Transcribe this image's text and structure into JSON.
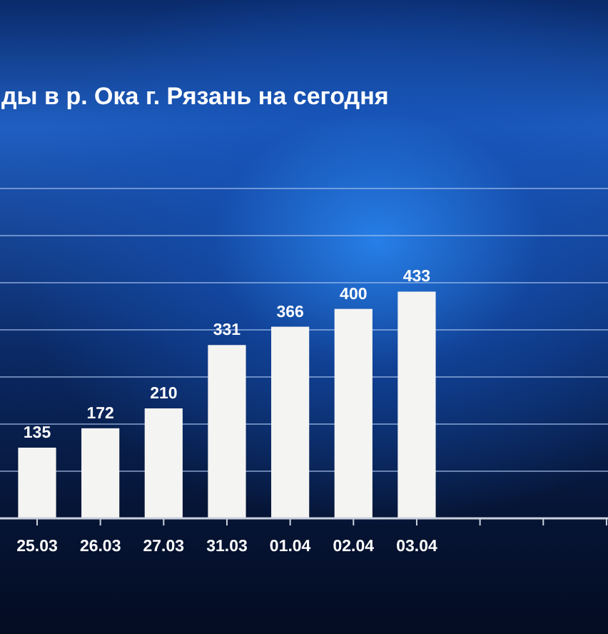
{
  "chart_data": {
    "type": "bar",
    "title": "ды в р. Ока г. Рязань на сегодня",
    "categories": [
      "25.03",
      "26.03",
      "27.03",
      "31.03",
      "01.04",
      "02.04",
      "03.04",
      null,
      null,
      null
    ],
    "values": [
      135,
      172,
      210,
      331,
      366,
      400,
      433,
      null,
      null,
      null
    ],
    "color": "#f4f4f2",
    "ylim": [
      0,
      630
    ],
    "yticks": [
      {
        "value": 90,
        "label": null
      },
      {
        "value": 180,
        "label": null
      },
      {
        "value": 270,
        "label": null
      },
      {
        "value": 360,
        "label": null
      },
      {
        "value": 450,
        "label": null
      },
      {
        "value": 540,
        "label": null
      },
      {
        "value": 630,
        "label": null
      }
    ],
    "grid": "y",
    "data_labels": true
  }
}
